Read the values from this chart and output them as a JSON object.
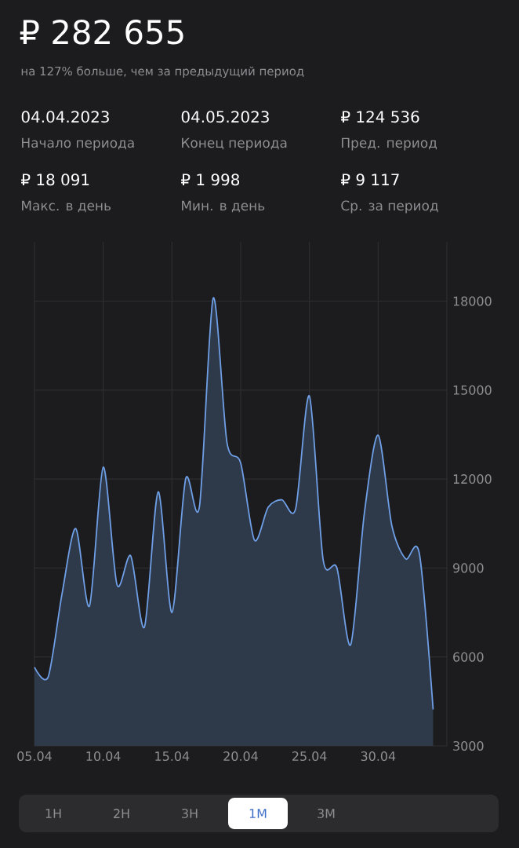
{
  "chart_data": {
    "type": "area",
    "title": "₽ 282 655",
    "subtitle": "на 127% больше, чем за предыдущий период",
    "annotations": [
      "04.04.2023",
      "Начало периода",
      "04.05.2023",
      "Конец периода",
      "₽ 124 536",
      "Пред. период",
      "₽ 18 091",
      "Макс. в день",
      "₽ 1 998",
      "Мин. в день",
      "₽ 9 117",
      "Ср. за период",
      "1Н",
      "2Н",
      "3Н",
      "1М",
      "3М"
    ],
    "x": [
      "2023-04-05",
      "2023-04-06",
      "2023-04-07",
      "2023-04-08",
      "2023-04-09",
      "2023-04-10",
      "2023-04-11",
      "2023-04-12",
      "2023-04-13",
      "2023-04-14",
      "2023-04-15",
      "2023-04-16",
      "2023-04-17",
      "2023-04-18",
      "2023-04-19",
      "2023-04-20",
      "2023-04-21",
      "2023-04-22",
      "2023-04-23",
      "2023-04-24",
      "2023-04-25",
      "2023-04-26",
      "2023-04-27",
      "2023-04-28",
      "2023-04-29",
      "2023-04-30",
      "2023-05-01",
      "2023-05-02",
      "2023-05-03",
      "2023-05-04"
    ],
    "series": [
      {
        "color": "#6f9fe6",
        "values": [
          5650,
          5330,
          8120,
          10330,
          7720,
          12400,
          8440,
          9410,
          7010,
          11570,
          7500,
          12010,
          11070,
          18100,
          13240,
          12540,
          9940,
          11050,
          11300,
          11000,
          14800,
          9270,
          9000,
          6410,
          10860,
          13480,
          10420,
          9310,
          9480,
          4230
        ]
      }
    ],
    "xlim": [
      "2023-04-05",
      "2023-05-05"
    ],
    "xticks": [
      {
        "value": "2023-04-05",
        "label": "05.04"
      },
      {
        "value": "2023-04-10",
        "label": "10.04"
      },
      {
        "value": "2023-04-15",
        "label": "15.04"
      },
      {
        "value": "2023-04-20",
        "label": "20.04"
      },
      {
        "value": "2023-04-25",
        "label": "25.04"
      },
      {
        "value": "2023-04-30",
        "label": "30.04"
      },
      {
        "value": "2023-05-05",
        "label": null
      }
    ],
    "ylim": [
      3000,
      20000
    ],
    "yticks": [
      3000,
      6000,
      9000,
      12000,
      15000,
      18000
    ],
    "grid": true
  }
}
